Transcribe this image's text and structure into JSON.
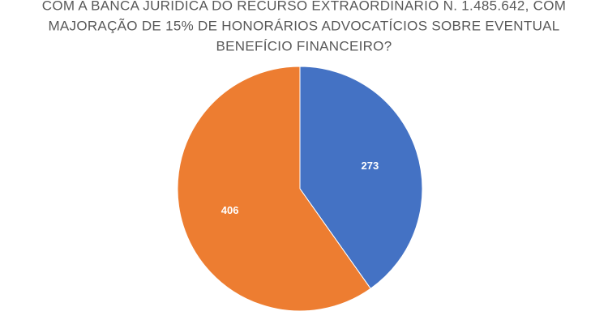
{
  "chart_data": {
    "type": "pie",
    "title": [
      "COM A BANCA JURÍDICA DO RECURSO EXTRAORDINÁRIO N. 1.485.642, COM",
      "MAJORAÇÃO DE 15% DE HONORÁRIOS ADVOCATÍCIOS SOBRE EVENTUAL",
      "BENEFÍCIO FINANCEIRO?"
    ],
    "values": [
      273,
      406
    ],
    "colors": [
      "#4472c4",
      "#ed7d31"
    ]
  }
}
